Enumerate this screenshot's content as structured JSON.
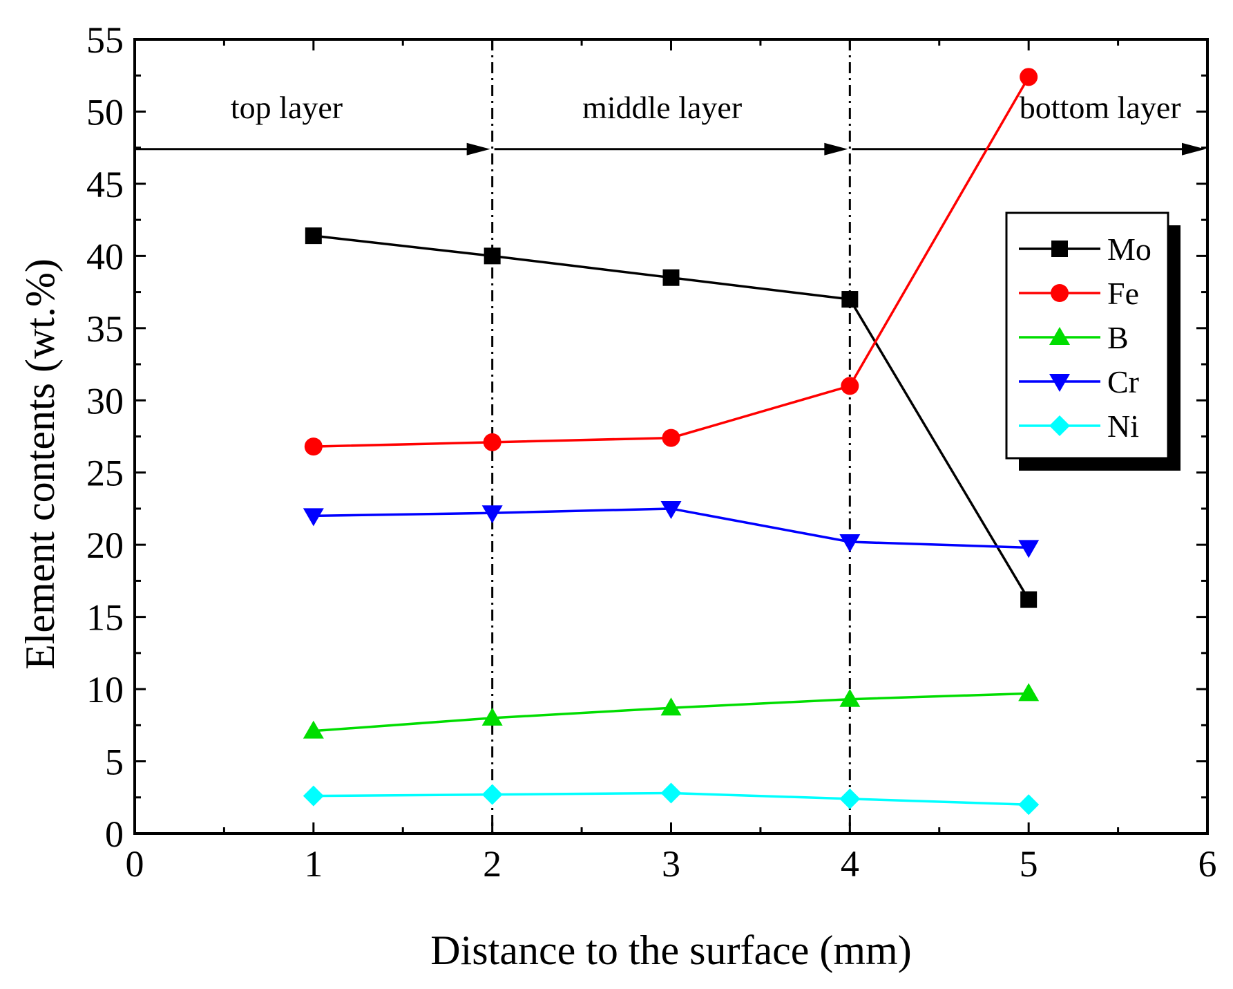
{
  "chart_data": {
    "type": "line",
    "xlabel": "Distance to the surface (mm)",
    "ylabel": "Element contents (wt.%)",
    "xlim": [
      0,
      6
    ],
    "ylim": [
      0,
      55
    ],
    "xticks": [
      0,
      1,
      2,
      3,
      4,
      5,
      6
    ],
    "yticks": [
      0,
      5,
      10,
      15,
      20,
      25,
      30,
      35,
      40,
      45,
      50,
      55
    ],
    "x": [
      1,
      2,
      3,
      4,
      5
    ],
    "series": [
      {
        "name": "Mo",
        "color": "#000000",
        "marker": "square",
        "values": [
          41.4,
          40.0,
          38.5,
          37.0,
          16.2
        ]
      },
      {
        "name": "Fe",
        "color": "#ff0000",
        "marker": "circle",
        "values": [
          26.8,
          27.1,
          27.4,
          31.0,
          52.4
        ]
      },
      {
        "name": "B",
        "color": "#00dd00",
        "marker": "triangle-up",
        "values": [
          7.1,
          8.0,
          8.7,
          9.3,
          9.7
        ]
      },
      {
        "name": "Cr",
        "color": "#0000ff",
        "marker": "triangle-down",
        "values": [
          22.0,
          22.2,
          22.5,
          20.2,
          19.8
        ]
      },
      {
        "name": "Ni",
        "color": "#00ffff",
        "marker": "diamond",
        "values": [
          2.6,
          2.7,
          2.8,
          2.4,
          2.0
        ]
      }
    ],
    "vlines": [
      2,
      4
    ],
    "regions": [
      {
        "label": "top layer",
        "x_from": 0,
        "x_to": 2,
        "label_x": 0.85
      },
      {
        "label": "middle layer",
        "x_from": 2,
        "x_to": 4,
        "label_x": 2.95
      },
      {
        "label": "bottom layer",
        "x_from": 4,
        "x_to": 6,
        "label_x": 5.4
      }
    ],
    "region_arrow_y": 47.4,
    "region_label_y": 50.3,
    "legend_position": "right, upper-middle"
  }
}
